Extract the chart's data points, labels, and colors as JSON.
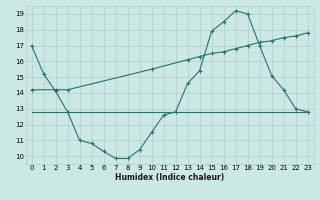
{
  "xlabel": "Humidex (Indice chaleur)",
  "bg_color": "#cce8e5",
  "grid_color": "#b0d0cc",
  "line_color": "#2a7068",
  "xlim": [
    -0.5,
    23.5
  ],
  "ylim": [
    9.5,
    19.5
  ],
  "xticks": [
    0,
    1,
    2,
    3,
    4,
    5,
    6,
    7,
    8,
    9,
    10,
    11,
    12,
    13,
    14,
    15,
    16,
    17,
    18,
    19,
    20,
    21,
    22,
    23
  ],
  "yticks": [
    10,
    11,
    12,
    13,
    14,
    15,
    16,
    17,
    18,
    19
  ],
  "line1_x": [
    0,
    1,
    2,
    3,
    4,
    5,
    6,
    7,
    8,
    9,
    10,
    11,
    12,
    13,
    14,
    15,
    16,
    17,
    18,
    19,
    20,
    21,
    22,
    23
  ],
  "line1_y": [
    17.0,
    15.2,
    14.1,
    12.8,
    11.0,
    10.8,
    10.3,
    9.85,
    9.85,
    10.4,
    11.5,
    12.6,
    12.8,
    14.6,
    15.4,
    17.9,
    18.5,
    19.2,
    19.0,
    17.0,
    15.1,
    14.2,
    13.0,
    12.8
  ],
  "line2_x": [
    0,
    2,
    3,
    10,
    13,
    14,
    15,
    16,
    17,
    18,
    19,
    20,
    21,
    22,
    23
  ],
  "line2_y": [
    14.2,
    14.2,
    14.2,
    15.5,
    16.1,
    16.3,
    16.5,
    16.6,
    16.8,
    17.0,
    17.2,
    17.3,
    17.5,
    17.6,
    17.8
  ],
  "line3_x": [
    0,
    10,
    23
  ],
  "line3_y": [
    12.8,
    12.8,
    12.8
  ]
}
